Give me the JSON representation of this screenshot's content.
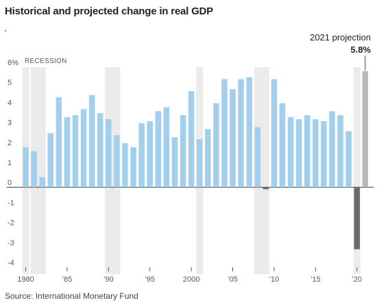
{
  "title": "Historical and projected change in real GDP",
  "source": "Source: International Monetary Fund",
  "chart_data": {
    "type": "bar",
    "title": "Historical and projected change in real GDP",
    "unit": "%",
    "ylim": [
      -4,
      6
    ],
    "y_ticks": [
      6,
      5,
      4,
      3,
      2,
      1,
      0,
      -1,
      -2,
      -3,
      -4
    ],
    "y_tick_labels": [
      "6%",
      "5",
      "4",
      "3",
      "2",
      "1",
      "0",
      "-1",
      "-2",
      "-3",
      "-4"
    ],
    "x_tick_years": [
      1980,
      1985,
      1990,
      1995,
      2000,
      2005,
      2010,
      2015,
      2020
    ],
    "x_tick_labels": [
      "1980",
      "’85",
      "’90",
      "’95",
      "2000",
      "’05",
      "’10",
      "’15",
      "’20"
    ],
    "recession_label": "RECESSION",
    "recessions": [
      [
        1980,
        1980
      ],
      [
        1981,
        1982
      ],
      [
        1990,
        1991
      ],
      [
        2001,
        2001
      ],
      [
        2008,
        2009
      ],
      [
        2020,
        2020
      ]
    ],
    "years": [
      1980,
      1981,
      1982,
      1983,
      1984,
      1985,
      1986,
      1987,
      1988,
      1989,
      1990,
      1991,
      1992,
      1993,
      1994,
      1995,
      1996,
      1997,
      1998,
      1999,
      2000,
      2001,
      2002,
      2003,
      2004,
      2005,
      2006,
      2007,
      2008,
      2009,
      2010,
      2011,
      2012,
      2013,
      2014,
      2015,
      2016,
      2017,
      2018,
      2019,
      2020,
      2021
    ],
    "values": [
      2.0,
      1.8,
      0.5,
      2.7,
      4.5,
      3.5,
      3.6,
      3.9,
      4.6,
      3.7,
      3.4,
      2.6,
      2.2,
      2.0,
      3.2,
      3.3,
      3.8,
      4.0,
      2.5,
      3.6,
      4.8,
      2.4,
      2.9,
      4.2,
      5.4,
      4.9,
      5.4,
      5.5,
      3.0,
      -0.1,
      5.4,
      4.2,
      3.5,
      3.4,
      3.6,
      3.4,
      3.3,
      3.8,
      3.6,
      2.8,
      -3.1,
      5.8
    ],
    "colors": {
      "historical": "#a2d0ec",
      "negative": "#6b6b6b",
      "projection": "#b9b9b9",
      "recession": "#ebebeb"
    },
    "projection": {
      "label": "2021 projection",
      "value": "5.8%",
      "year": 2021
    }
  }
}
